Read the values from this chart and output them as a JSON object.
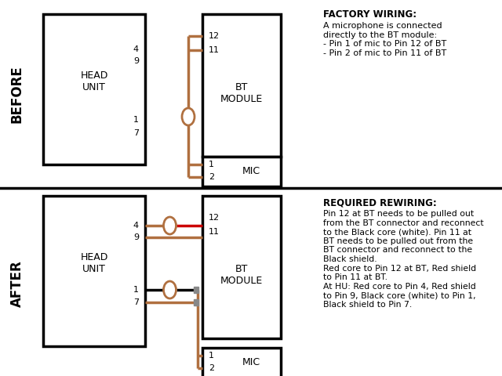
{
  "bg_color": "#ffffff",
  "wire_brown": "#b07040",
  "wire_red": "#cc0000",
  "wire_black": "#000000",
  "before_label": "BEFORE",
  "after_label": "AFTER",
  "factory_title": "FACTORY WIRING:",
  "factory_text": "A microphone is connected\ndirectly to the BT module:\n- Pin 1 of mic to Pin 12 of BT\n- Pin 2 of mic to Pin 11 of BT",
  "rewiring_title": "REQUIRED REWIRING:",
  "rewiring_text": "Pin 12 at BT needs to be pulled out\nfrom the BT connector and reconnect\nto the Black core (white). Pin 11 at\nBT needs to be pulled out from the\nBT connector and reconnect to the\nBlack shield.\nRed core to Pin 12 at BT, Red shield\nto Pin 11 at BT.\nAt HU: Red core to Pin 4, Red shield\nto Pin 9, Black core (white) to Pin 1,\nBlack shield to Pin 7."
}
